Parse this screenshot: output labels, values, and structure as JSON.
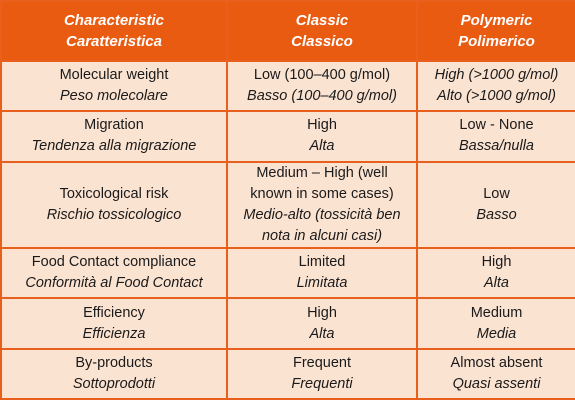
{
  "header": {
    "characteristic": {
      "en": "Characteristic",
      "it": "Caratteristica"
    },
    "classic": {
      "en": "Classic",
      "it": "Classico"
    },
    "polymeric": {
      "en": "Polymeric",
      "it": "Polimerico"
    }
  },
  "rows": [
    {
      "characteristic": {
        "en": "Molecular weight",
        "it": "Peso molecolare"
      },
      "classic": {
        "en": "Low (100–400 g/mol)",
        "it": "Basso (100–400 g/mol)",
        "en_italic": false
      },
      "polymeric": {
        "en": "High (>1000 g/mol)",
        "it": "Alto (>1000 g/mol)"
      }
    },
    {
      "characteristic": {
        "en": "Migration",
        "it": "Tendenza alla migrazione"
      },
      "classic": {
        "en": "High",
        "it": "Alta"
      },
      "polymeric": {
        "en": "Low - None",
        "it": "Bassa/nulla"
      }
    },
    {
      "characteristic": {
        "en": "Toxicological risk",
        "it": "Rischio tossicologico"
      },
      "classic": {
        "en": "Medium – High (well known in some cases)",
        "it": "Medio-alto (tossicità ben nota in alcuni casi)"
      },
      "polymeric": {
        "en": "Low",
        "it": "Basso"
      }
    },
    {
      "characteristic": {
        "en": "Food Contact compliance",
        "it": "Conformità al Food Contact"
      },
      "classic": {
        "en": "Limited",
        "it": "Limitata"
      },
      "polymeric": {
        "en": "High",
        "it": "Alta"
      }
    },
    {
      "characteristic": {
        "en": "Efficiency",
        "it": "Efficienza"
      },
      "classic": {
        "en": "High",
        "it": "Alta"
      },
      "polymeric": {
        "en": "Medium",
        "it": "Media"
      }
    },
    {
      "characteristic": {
        "en": "By-products",
        "it": "Sottoprodotti"
      },
      "classic": {
        "en": "Frequent",
        "it": "Frequenti"
      },
      "polymeric": {
        "en": "Almost absent",
        "it": "Quasi assenti"
      }
    }
  ],
  "colors": {
    "header_bg": "#ea5b12",
    "cell_bg": "#fbe3d2",
    "border": "#e8601c"
  }
}
